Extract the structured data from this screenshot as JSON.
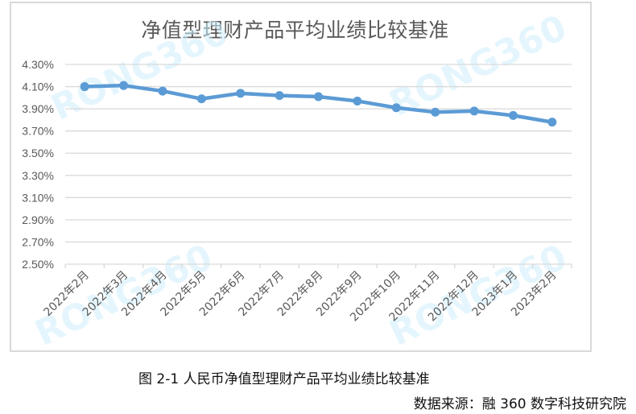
{
  "chart_data": {
    "type": "line",
    "title": "净值型理财产品平均业绩比较基准",
    "xlabel": "",
    "ylabel": "",
    "categories": [
      "2022年2月",
      "2022年3月",
      "2022年4月",
      "2022年5月",
      "2022年6月",
      "2022年7月",
      "2022年8月",
      "2022年9月",
      "2022年10月",
      "2022年11月",
      "2022年12月",
      "2023年1月",
      "2023年2月"
    ],
    "series": [
      {
        "name": "平均业绩比较基准",
        "values": [
          4.1,
          4.11,
          4.06,
          3.99,
          4.04,
          4.02,
          4.01,
          3.97,
          3.91,
          3.87,
          3.88,
          3.84,
          3.78
        ],
        "color": "#5b9bd5"
      }
    ],
    "y_ticks": [
      "4.30%",
      "4.10%",
      "3.90%",
      "3.70%",
      "3.50%",
      "3.30%",
      "3.10%",
      "2.90%",
      "2.70%",
      "2.50%"
    ],
    "ylim": [
      2.5,
      4.3
    ],
    "grid": true,
    "legend": "none",
    "unit": "%"
  },
  "watermark": "RONG360",
  "caption": "图 2-1 人民币净值型理财产品平均业绩比较基准",
  "source": "数据来源：融 360 数字科技研究院"
}
